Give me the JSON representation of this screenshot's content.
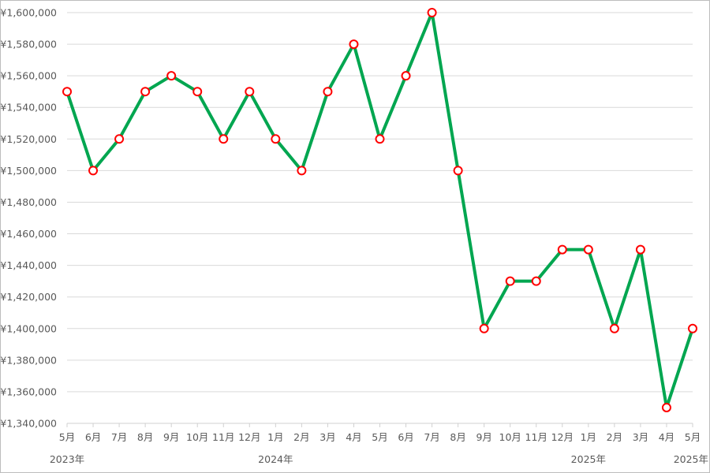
{
  "chart_data": {
    "type": "line",
    "title": "",
    "xlabel": "",
    "ylabel": "",
    "categories": [
      "5月",
      "6月",
      "7月",
      "8月",
      "9月",
      "10月",
      "11月",
      "12月",
      "1月",
      "2月",
      "3月",
      "4月",
      "5月",
      "6月",
      "7月",
      "8月",
      "9月",
      "10月",
      "11月",
      "12月",
      "1月",
      "2月",
      "3月",
      "4月",
      "5月"
    ],
    "year_labels": [
      {
        "index": 0,
        "label": "2023年"
      },
      {
        "index": 8,
        "label": "2024年"
      },
      {
        "index": 20,
        "label": "2025年"
      },
      {
        "index": 24,
        "label": "2025年"
      }
    ],
    "series": [
      {
        "values": [
          1550000,
          1500000,
          1520000,
          1550000,
          1560000,
          1550000,
          1520000,
          1550000,
          1520000,
          1500000,
          1550000,
          1580000,
          1520000,
          1560000,
          1600000,
          1500000,
          1400000,
          1430000,
          1430000,
          1450000,
          1450000,
          1400000,
          1450000,
          1350000,
          1400000
        ]
      }
    ],
    "ylim": [
      1340000,
      1600000
    ],
    "ytick_step": 20000,
    "ytick_labels": [
      "¥1,340,000",
      "¥1,360,000",
      "¥1,380,000",
      "¥1,400,000",
      "¥1,420,000",
      "¥1,440,000",
      "¥1,460,000",
      "¥1,480,000",
      "¥1,500,000",
      "¥1,520,000",
      "¥1,540,000",
      "¥1,560,000",
      "¥1,580,000",
      "¥1,600,000"
    ],
    "grid": true,
    "legend": "none",
    "colors": {
      "line": "#00a650",
      "marker_edge": "#ff0000",
      "marker_fill": "#ffffff",
      "grid": "#d9d9d9"
    }
  }
}
